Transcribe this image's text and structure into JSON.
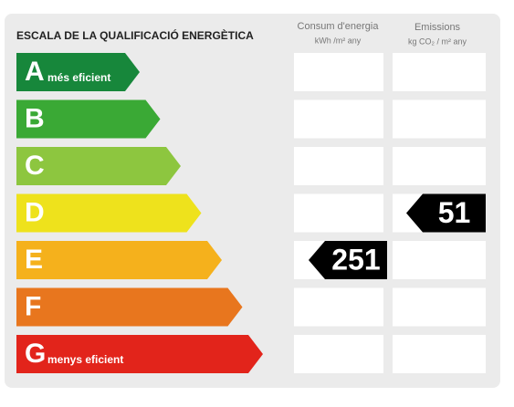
{
  "header": {
    "title": "ESCALA DE LA QUALIFICACIÓ ENERGÈTICA",
    "energy_title": "Consum d'energia",
    "energy_unit": "kWh /m² any",
    "emissions_title": "Emissions",
    "emissions_unit": "kg CO₂ / m² any"
  },
  "classes": [
    {
      "letter": "A",
      "note": "més eficient",
      "color": "#17873b"
    },
    {
      "letter": "B",
      "color": "#3aa935"
    },
    {
      "letter": "C",
      "color": "#8dc63f"
    },
    {
      "letter": "D",
      "color": "#eee21c",
      "emissions": 51
    },
    {
      "letter": "E",
      "color": "#f5b11c",
      "energy": 251
    },
    {
      "letter": "F",
      "color": "#e8761e"
    },
    {
      "letter": "G",
      "note": "menys eficient",
      "color": "#e2241b"
    }
  ]
}
